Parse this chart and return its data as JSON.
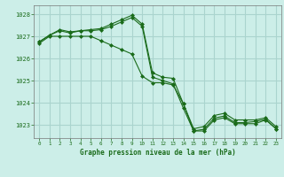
{
  "title": "Graphe pression niveau de la mer (hPa)",
  "bg_color": "#cceee8",
  "grid_color": "#aad4ce",
  "line_color": "#1a6b1a",
  "marker_color": "#1a6b1a",
  "xlim": [
    -0.5,
    23.5
  ],
  "ylim": [
    1022.4,
    1028.4
  ],
  "yticks": [
    1023,
    1024,
    1025,
    1026,
    1027,
    1028
  ],
  "xticks": [
    0,
    1,
    2,
    3,
    4,
    5,
    6,
    7,
    8,
    9,
    10,
    11,
    12,
    13,
    14,
    15,
    16,
    17,
    18,
    19,
    20,
    21,
    22,
    23
  ],
  "series": [
    {
      "x": [
        0,
        1,
        2,
        3,
        4,
        5,
        6,
        7,
        8,
        9,
        10,
        11,
        12,
        13,
        14,
        15,
        16,
        17,
        18,
        19,
        20,
        21,
        22,
        23
      ],
      "y": [
        1026.75,
        1027.05,
        1027.25,
        1027.15,
        1027.25,
        1027.25,
        1027.3,
        1027.45,
        1027.65,
        1027.85,
        1027.45,
        1025.15,
        1025.0,
        1024.85,
        1023.75,
        1022.72,
        1022.8,
        1023.3,
        1023.4,
        1023.1,
        1023.1,
        1023.15,
        1023.25,
        1022.82
      ]
    },
    {
      "x": [
        0,
        1,
        2,
        3,
        4,
        5,
        6,
        7,
        8,
        9,
        10,
        11,
        12,
        13,
        14,
        15,
        16,
        17,
        18,
        19,
        20,
        21,
        22,
        23
      ],
      "y": [
        1026.75,
        1027.05,
        1027.3,
        1027.2,
        1027.25,
        1027.3,
        1027.35,
        1027.55,
        1027.75,
        1027.95,
        1027.55,
        1025.35,
        1025.15,
        1025.1,
        1023.95,
        1022.82,
        1022.92,
        1023.42,
        1023.52,
        1023.22,
        1023.22,
        1023.22,
        1023.32,
        1022.92
      ]
    },
    {
      "x": [
        0,
        1,
        2,
        3,
        4,
        5,
        6,
        7,
        8,
        9,
        10,
        11,
        12,
        13,
        14,
        15,
        16,
        17,
        18,
        19,
        20,
        21,
        22,
        23
      ],
      "y": [
        1026.68,
        1027.0,
        1027.0,
        1027.0,
        1027.0,
        1027.0,
        1026.8,
        1026.6,
        1026.4,
        1026.2,
        1025.2,
        1024.9,
        1024.9,
        1024.8,
        1023.95,
        1022.72,
        1022.72,
        1023.22,
        1023.32,
        1023.05,
        1023.05,
        1023.05,
        1023.22,
        1022.82
      ]
    }
  ]
}
